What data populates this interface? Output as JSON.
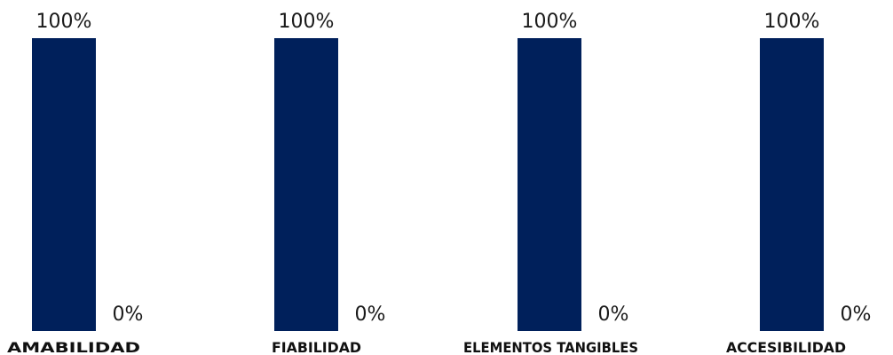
{
  "chart_data": {
    "type": "bar",
    "categories": [
      "AMABILIDAD",
      "FIABILIDAD",
      "ELEMENTOS TANGIBLES",
      "ACCESIBILIDAD"
    ],
    "series": [
      {
        "values": [
          100,
          100,
          100,
          100
        ],
        "labels": [
          "100%",
          "100%",
          "100%",
          "100%"
        ]
      },
      {
        "values": [
          0,
          0,
          0,
          0
        ],
        "labels": [
          "0%",
          "0%",
          "0%",
          "0%"
        ]
      }
    ],
    "ylim": [
      0,
      100
    ],
    "grid": false,
    "legend": "none",
    "colors": [
      "#00205b",
      "#00205b"
    ]
  }
}
